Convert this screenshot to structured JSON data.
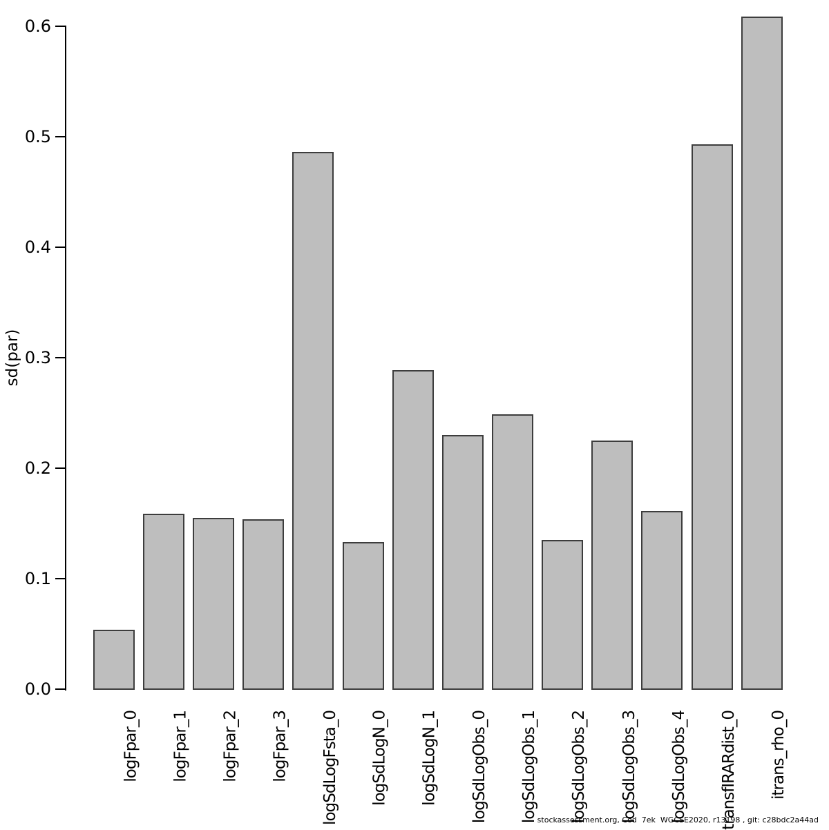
{
  "chart_data": {
    "type": "bar",
    "title": "",
    "categories": [
      "logFpar_0",
      "logFpar_1",
      "logFpar_2",
      "logFpar_3",
      "logSdLogFsta_0",
      "logSdLogN_0",
      "logSdLogN_1",
      "logSdLogObs_0",
      "logSdLogObs_1",
      "logSdLogObs_2",
      "logSdLogObs_3",
      "logSdLogObs_4",
      "transfIRARdist_0",
      "itrans_rho_0"
    ],
    "values": [
      0.054,
      0.159,
      0.155,
      0.154,
      0.486,
      0.133,
      0.289,
      0.23,
      0.249,
      0.135,
      0.225,
      0.161,
      0.493,
      0.609
    ],
    "xlabel": "",
    "ylabel": "sd(par)",
    "ylim": [
      0,
      0.6
    ],
    "yticks": [
      "0.0",
      "0.1",
      "0.2",
      "0.3",
      "0.4",
      "0.5",
      "0.6"
    ],
    "grid": false,
    "legend": null,
    "bar_fill": "#bebebe",
    "bar_border": "#3d3d3d",
    "axis_color": "#000000"
  },
  "footer": {
    "caption": "stockassessment.org, Cod  7ek  WGCSE2020, r13198 , git: c28bdc2a44ad"
  }
}
